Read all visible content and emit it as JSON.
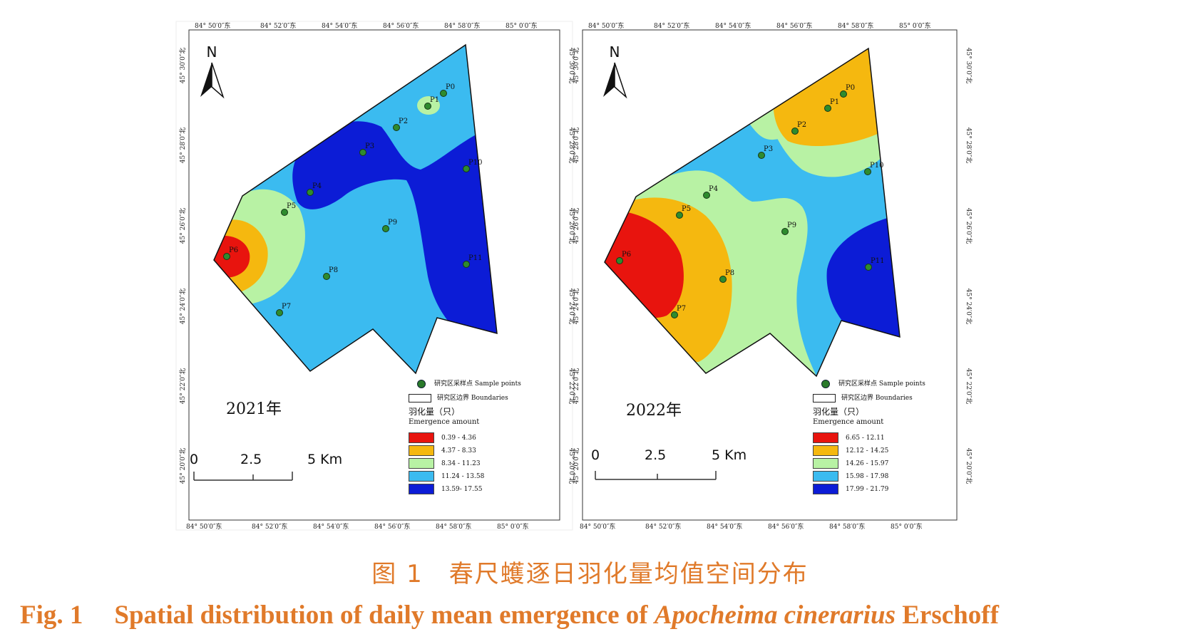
{
  "maps": [
    {
      "year_label": "2021年",
      "top_ticks": [
        "84° 50′0″东",
        "84° 52′0″东",
        "84° 54′0″东",
        "84° 56′0″东",
        "84° 58′0″东",
        "85° 0′0″东"
      ],
      "bottom_ticks": [
        "84° 50′0″东",
        "84° 52′0″东",
        "84° 54′0″东",
        "84° 56′0″东",
        "84° 58′0″东",
        "85° 0′0″东"
      ],
      "side_ticks": [
        "45° 30′0″北",
        "45° 28′0″北",
        "45° 26′0″北",
        "45° 24′0″北",
        "45° 22′0″北",
        "45° 20′0″北"
      ],
      "north_label": "N",
      "scale_labels": [
        "0",
        "2.5",
        "5 Km"
      ],
      "points": [
        "P0",
        "P1",
        "P2",
        "P3",
        "P4",
        "P5",
        "P6",
        "P7",
        "P8",
        "P9",
        "P10",
        "P11"
      ],
      "legend": {
        "sample_label": "研究区采样点 Sample points",
        "boundary_label": "研究区边界  Boundaries",
        "title_cn": "羽化量（只）",
        "title_en": "Emergence amount",
        "classes": [
          {
            "range": "0.39 - 4.36",
            "color": "#e8140e"
          },
          {
            "range": "4.37 - 8.33",
            "color": "#f5b80f"
          },
          {
            "range": "8.34 - 11.23",
            "color": "#b8f2a4"
          },
          {
            "range": "11.24 - 13.58",
            "color": "#3bbbf0"
          },
          {
            "range": "13.59- 17.55",
            "color": "#0c1cd6"
          }
        ]
      }
    },
    {
      "year_label": "2022年",
      "top_ticks": [
        "84° 50′0″东",
        "84° 52′0″东",
        "84° 54′0″东",
        "84° 56′0″东",
        "84° 58′0″东",
        "85° 0′0″东"
      ],
      "bottom_ticks": [
        "84° 50′0″东",
        "84° 52′0″东",
        "84° 54′0″东",
        "84° 56′0″东",
        "84° 58′0″东",
        "85° 0′0″东"
      ],
      "side_ticks": [
        "45° 30′0″北",
        "45° 28′0″北",
        "45° 26′0″北",
        "45° 24′0″北",
        "45° 22′0″北",
        "45° 20′0″北"
      ],
      "north_label": "N",
      "scale_labels": [
        "0",
        "2.5",
        "5 Km"
      ],
      "points": [
        "P0",
        "P1",
        "P2",
        "P3",
        "P4",
        "P5",
        "P6",
        "P7",
        "P8",
        "P9",
        "P10",
        "P11"
      ],
      "legend": {
        "sample_label": "研究区采样点 Sample points",
        "boundary_label": "研究区边界  Boundaries",
        "title_cn": "羽化量（只）",
        "title_en": "Emergence amount",
        "classes": [
          {
            "range": "6.65 - 12.11",
            "color": "#e8140e"
          },
          {
            "range": "12.12 - 14.25",
            "color": "#f5b80f"
          },
          {
            "range": "14.26 - 15.97",
            "color": "#b8f2a4"
          },
          {
            "range": "15.98 - 17.98",
            "color": "#3bbbf0"
          },
          {
            "range": "17.99 - 21.79",
            "color": "#0c1cd6"
          }
        ]
      }
    }
  ],
  "caption": {
    "cn": "图 1　春尺蠖逐日羽化量均值空间分布",
    "en_prefix": "Fig. 1",
    "en_text": "Spatial distribution of daily mean emergence of ",
    "en_species": "Apocheima cinerarius",
    "en_author": " Erschoff"
  }
}
